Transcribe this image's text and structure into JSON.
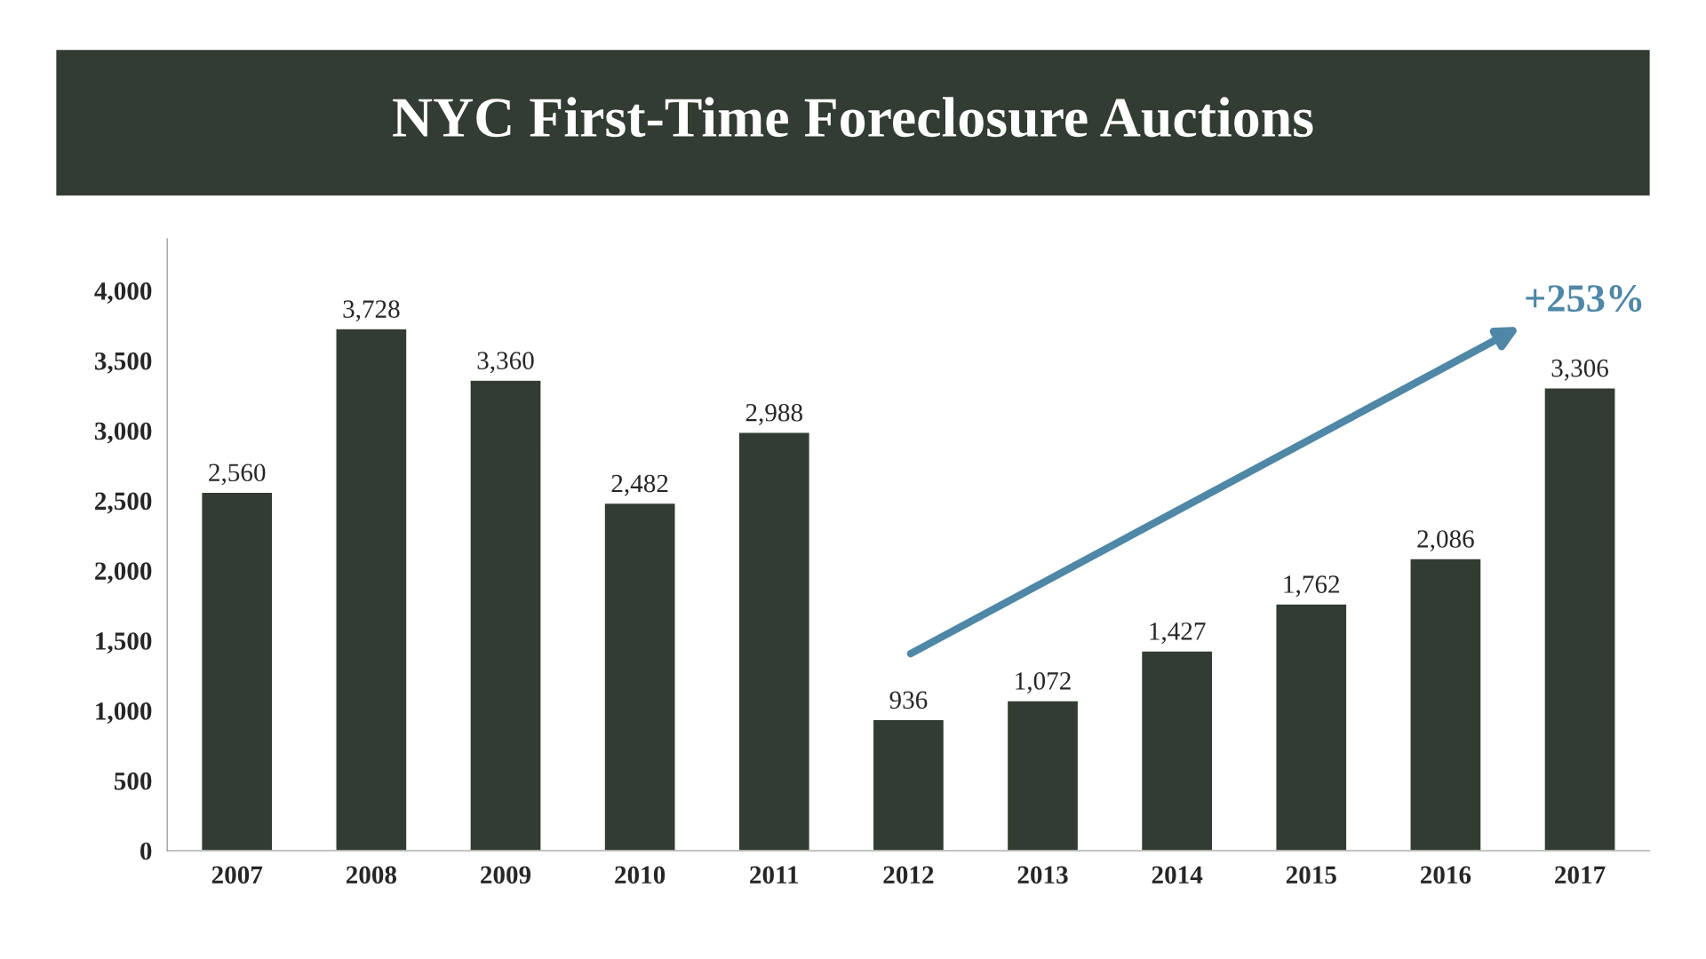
{
  "chart_data": {
    "type": "bar",
    "title": "NYC First-Time Foreclosure Auctions",
    "categories": [
      "2007",
      "2008",
      "2009",
      "2010",
      "2011",
      "2012",
      "2013",
      "2014",
      "2015",
      "2016",
      "2017"
    ],
    "values": [
      2560,
      3728,
      3360,
      2482,
      2988,
      936,
      1072,
      1427,
      1762,
      2086,
      3306
    ],
    "color": "#323c32",
    "ylim": [
      0,
      4370
    ],
    "yticks": [
      {
        "value": 0,
        "label": "0"
      },
      {
        "value": 500,
        "label": "500"
      },
      {
        "value": 1000,
        "label": "1,000"
      },
      {
        "value": 1500,
        "label": "1,500"
      },
      {
        "value": 2000,
        "label": "2,000"
      },
      {
        "value": 2500,
        "label": "2,500"
      },
      {
        "value": 3000,
        "label": "3,000"
      },
      {
        "value": 3500,
        "label": "3,500"
      },
      {
        "value": 4000,
        "label": "4,000"
      }
    ],
    "value_labels": [
      "2,560",
      "3,728",
      "3,360",
      "2,482",
      "2,988",
      "936",
      "1,072",
      "1,427",
      "1,762",
      "2,086",
      "3,306"
    ],
    "grid": false,
    "legend": false,
    "annotations": [
      "+253%"
    ]
  }
}
